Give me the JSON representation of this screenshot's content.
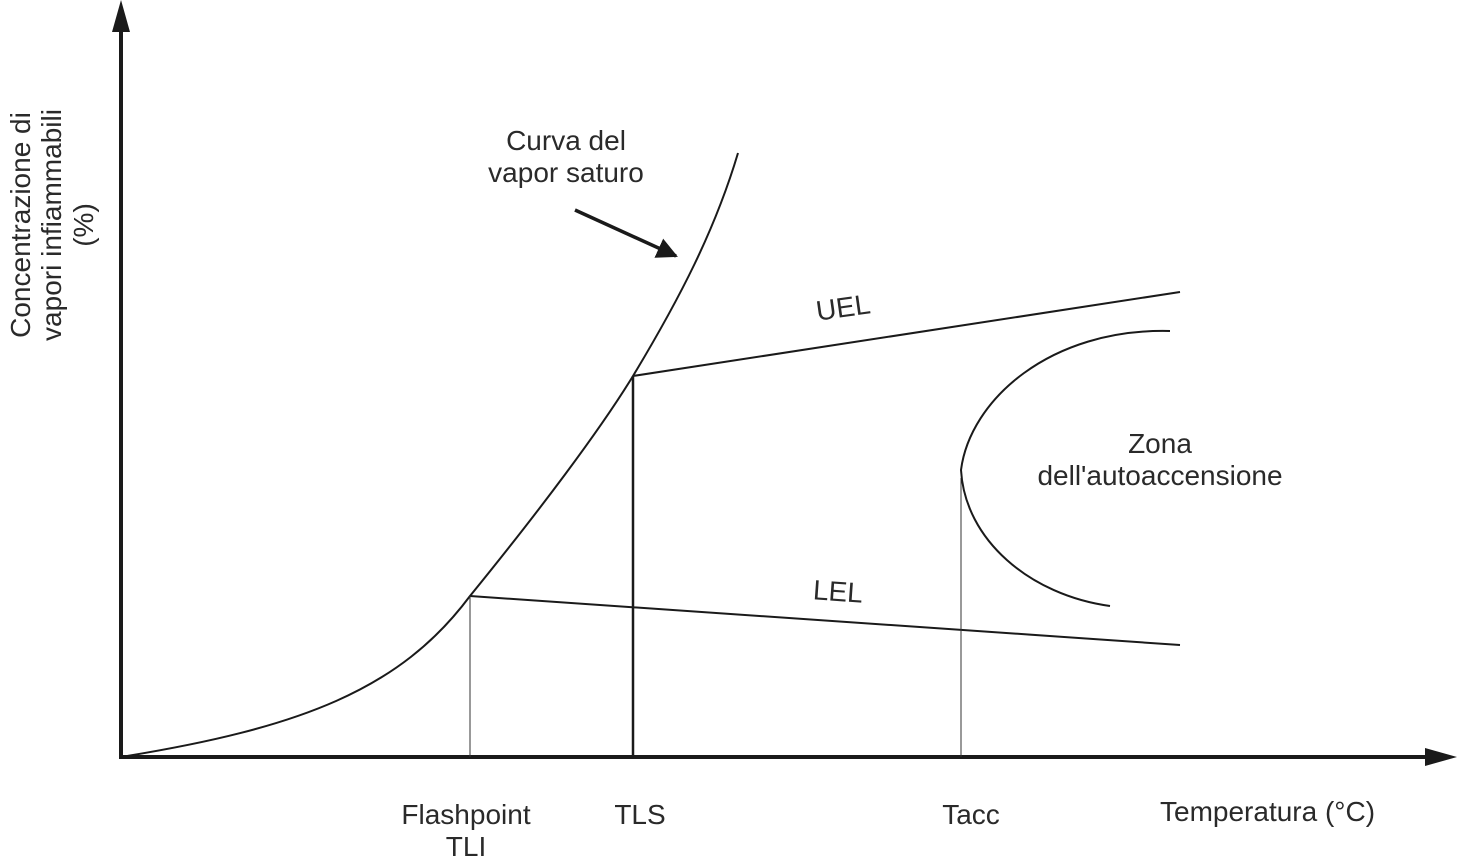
{
  "y_axis_label": [
    "Concentrazione di",
    "vapori infiammabili",
    "(%)"
  ],
  "x_axis_label": "Temperatura (°C)",
  "curves": {
    "saturation": [
      "Curva del",
      "vapor saturo"
    ],
    "uel": "UEL",
    "lel": "LEL",
    "autoignition_zone": [
      "Zona",
      "dell'autoaccensione"
    ]
  },
  "x_ticks": {
    "flashpoint": [
      "Flashpoint",
      "TLI"
    ],
    "tls": "TLS",
    "tacc": "Tacc"
  },
  "colors": {
    "line": "#1a1a1a",
    "text": "#2a2a2a",
    "background": "#ffffff"
  }
}
